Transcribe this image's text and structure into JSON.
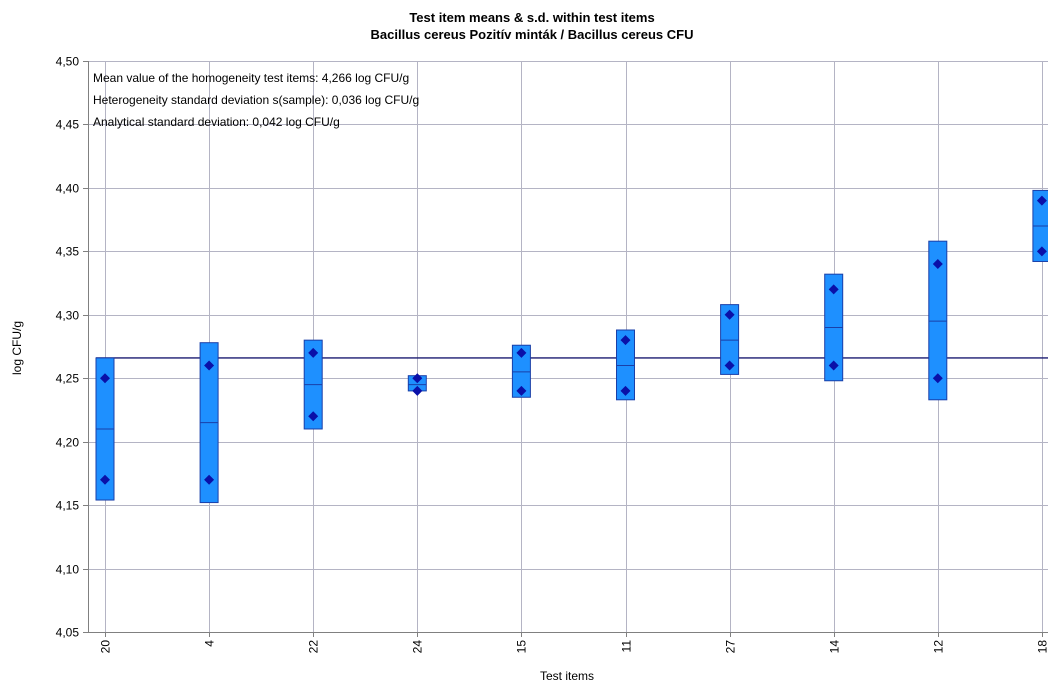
{
  "chart_data": {
    "type": "box",
    "title": "Test item means & s.d. within test items",
    "subtitle": "Bacillus cereus Pozitív minták / Bacillus cereus CFU",
    "xlabel": "Test items",
    "ylabel": "log CFU/g",
    "ylim": [
      4.05,
      4.5
    ],
    "yticks": [
      "4,05",
      "4,10",
      "4,15",
      "4,20",
      "4,25",
      "4,30",
      "4,35",
      "4,40",
      "4,45",
      "4,50"
    ],
    "grid": true,
    "reference_line": 4.266,
    "annotations": [
      "Mean value of the homogeneity test items: 4,266 log CFU/g",
      "Heterogeneity standard deviation s(sample): 0,036 log CFU/g",
      "Analytical standard deviation: 0,042 log CFU/g"
    ],
    "categories": [
      "20",
      "4",
      "22",
      "24",
      "15",
      "11",
      "27",
      "14",
      "12",
      "18"
    ],
    "items": [
      {
        "item": "20",
        "low": 4.154,
        "high": 4.266,
        "mean": 4.21,
        "values": [
          4.25,
          4.17
        ]
      },
      {
        "item": "4",
        "low": 4.152,
        "high": 4.278,
        "mean": 4.215,
        "values": [
          4.26,
          4.17
        ]
      },
      {
        "item": "22",
        "low": 4.21,
        "high": 4.28,
        "mean": 4.245,
        "values": [
          4.27,
          4.22
        ]
      },
      {
        "item": "24",
        "low": 4.24,
        "high": 4.252,
        "mean": 4.245,
        "values": [
          4.25,
          4.24
        ]
      },
      {
        "item": "15",
        "low": 4.235,
        "high": 4.276,
        "mean": 4.255,
        "values": [
          4.27,
          4.24
        ]
      },
      {
        "item": "11",
        "low": 4.233,
        "high": 4.288,
        "mean": 4.26,
        "values": [
          4.28,
          4.24
        ]
      },
      {
        "item": "27",
        "low": 4.253,
        "high": 4.308,
        "mean": 4.28,
        "values": [
          4.3,
          4.26
        ]
      },
      {
        "item": "14",
        "low": 4.248,
        "high": 4.332,
        "mean": 4.29,
        "values": [
          4.32,
          4.26
        ]
      },
      {
        "item": "12",
        "low": 4.233,
        "high": 4.358,
        "mean": 4.295,
        "values": [
          4.34,
          4.25
        ]
      },
      {
        "item": "18",
        "low": 4.342,
        "high": 4.398,
        "mean": 4.37,
        "values": [
          4.39,
          4.35
        ]
      }
    ],
    "colors": {
      "box_fill": "#1e90ff",
      "box_stroke": "#1a3fa8",
      "point": "#0a10a8",
      "reference": "#1a1a70",
      "grid": "#b4b4c4"
    }
  }
}
